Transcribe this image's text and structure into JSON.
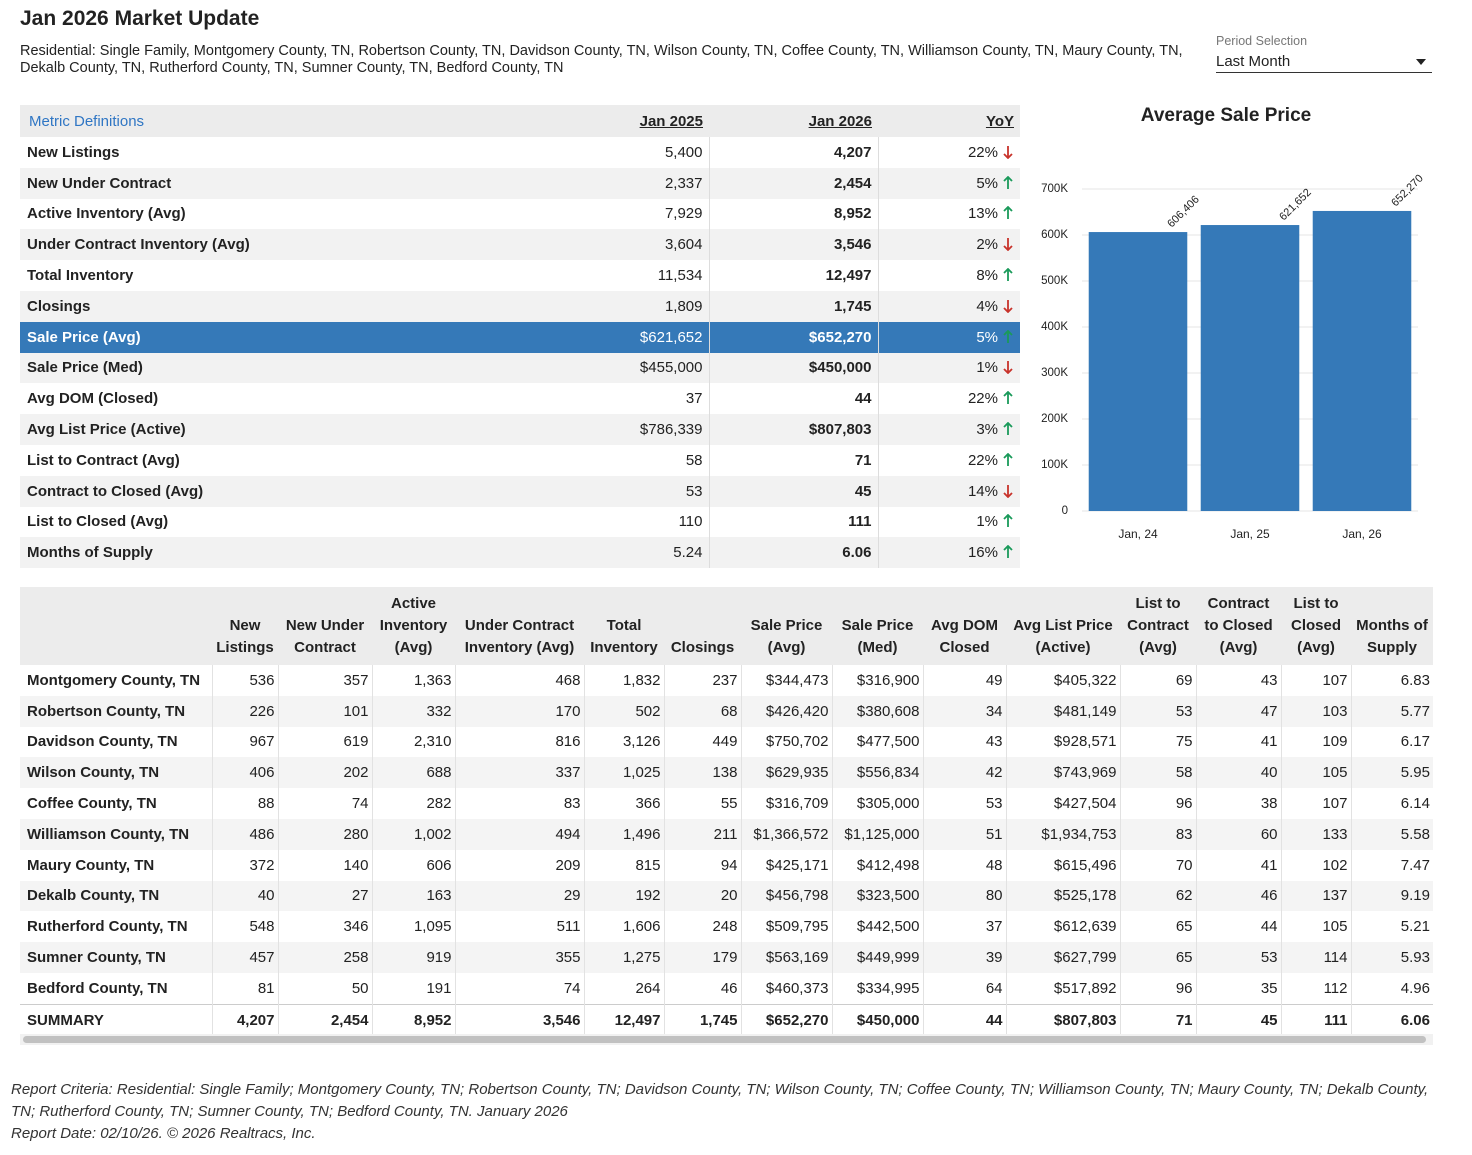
{
  "header": {
    "title": "Jan 2026 Market Update",
    "subtitle": "Residential: Single Family, Montgomery County, TN, Robertson County, TN, Davidson County, TN, Wilson County, TN, Coffee County, TN, Williamson County, TN, Maury County, TN, Dekalb County, TN, Rutherford County, TN, Sumner County, TN, Bedford County, TN",
    "period_label": "Period Selection",
    "period_value": "Last Month"
  },
  "metrics": {
    "columns": [
      "Metric Definitions",
      "Jan 2025",
      "Jan 2026",
      "YoY"
    ],
    "highlighted_row": 6,
    "rows": [
      [
        "New Listings",
        "5,400",
        "4,207",
        "22%",
        "down"
      ],
      [
        "New Under Contract",
        "2,337",
        "2,454",
        "5%",
        "up"
      ],
      [
        "Active Inventory (Avg)",
        "7,929",
        "8,952",
        "13%",
        "up"
      ],
      [
        "Under Contract Inventory (Avg)",
        "3,604",
        "3,546",
        "2%",
        "down"
      ],
      [
        "Total Inventory",
        "11,534",
        "12,497",
        "8%",
        "up"
      ],
      [
        "Closings",
        "1,809",
        "1,745",
        "4%",
        "down"
      ],
      [
        "Sale Price (Avg)",
        "$621,652",
        "$652,270",
        "5%",
        "up"
      ],
      [
        "Sale Price (Med)",
        "$455,000",
        "$450,000",
        "1%",
        "down"
      ],
      [
        "Avg DOM (Closed)",
        "37",
        "44",
        "22%",
        "up"
      ],
      [
        "Avg List Price (Active)",
        "$786,339",
        "$807,803",
        "3%",
        "up"
      ],
      [
        "List to Contract (Avg)",
        "58",
        "71",
        "22%",
        "up"
      ],
      [
        "Contract to Closed (Avg)",
        "53",
        "45",
        "14%",
        "down"
      ],
      [
        "List to Closed (Avg)",
        "110",
        "111",
        "1%",
        "up"
      ],
      [
        "Months of Supply",
        "5.24",
        "6.06",
        "16%",
        "up"
      ]
    ]
  },
  "chart_data": {
    "type": "bar",
    "title": "Average Sale Price",
    "categories": [
      "Jan, 24",
      "Jan, 25",
      "Jan, 26"
    ],
    "values": [
      606406,
      621652,
      652270
    ],
    "value_labels": [
      "606,406",
      "621,652",
      "652,270"
    ],
    "color": "#3579b8",
    "ylim": [
      0,
      700000
    ],
    "grid": true,
    "yticks": [
      0,
      {
        "value": 100000,
        "label": "100K"
      },
      {
        "value": 200000,
        "label": "200K"
      },
      {
        "value": 300000,
        "label": "300K"
      },
      {
        "value": 400000,
        "label": "400K"
      },
      {
        "value": 500000,
        "label": "500K"
      },
      {
        "value": 600000,
        "label": "600K"
      },
      {
        "value": 700000,
        "label": "700K"
      }
    ]
  },
  "counties": {
    "columns": [
      "New Listings",
      "New Under Contract",
      "Active Inventory (Avg)",
      "Under Contract Inventory (Avg)",
      "Total Inventory",
      "Closings",
      "Sale Price (Avg)",
      "Sale Price (Med)",
      "Avg DOM Closed",
      "Avg List Price (Active)",
      "List to Contract (Avg)",
      "Contract to Closed (Avg)",
      "List to Closed (Avg)",
      "Months of Supply"
    ],
    "rows": [
      [
        "Montgomery County, TN",
        "536",
        "357",
        "1,363",
        "468",
        "1,832",
        "237",
        "$344,473",
        "$316,900",
        "49",
        "$405,322",
        "69",
        "43",
        "107",
        "6.83"
      ],
      [
        "Robertson County, TN",
        "226",
        "101",
        "332",
        "170",
        "502",
        "68",
        "$426,420",
        "$380,608",
        "34",
        "$481,149",
        "53",
        "47",
        "103",
        "5.77"
      ],
      [
        "Davidson County, TN",
        "967",
        "619",
        "2,310",
        "816",
        "3,126",
        "449",
        "$750,702",
        "$477,500",
        "43",
        "$928,571",
        "75",
        "41",
        "109",
        "6.17"
      ],
      [
        "Wilson County, TN",
        "406",
        "202",
        "688",
        "337",
        "1,025",
        "138",
        "$629,935",
        "$556,834",
        "42",
        "$743,969",
        "58",
        "40",
        "105",
        "5.95"
      ],
      [
        "Coffee County, TN",
        "88",
        "74",
        "282",
        "83",
        "366",
        "55",
        "$316,709",
        "$305,000",
        "53",
        "$427,504",
        "96",
        "38",
        "107",
        "6.14"
      ],
      [
        "Williamson County, TN",
        "486",
        "280",
        "1,002",
        "494",
        "1,496",
        "211",
        "$1,366,572",
        "$1,125,000",
        "51",
        "$1,934,753",
        "83",
        "60",
        "133",
        "5.58"
      ],
      [
        "Maury County, TN",
        "372",
        "140",
        "606",
        "209",
        "815",
        "94",
        "$425,171",
        "$412,498",
        "48",
        "$615,496",
        "70",
        "41",
        "102",
        "7.47"
      ],
      [
        "Dekalb County, TN",
        "40",
        "27",
        "163",
        "29",
        "192",
        "20",
        "$456,798",
        "$323,500",
        "80",
        "$525,178",
        "62",
        "46",
        "137",
        "9.19"
      ],
      [
        "Rutherford County, TN",
        "548",
        "346",
        "1,095",
        "511",
        "1,606",
        "248",
        "$509,795",
        "$442,500",
        "37",
        "$612,639",
        "65",
        "44",
        "105",
        "5.21"
      ],
      [
        "Sumner County, TN",
        "457",
        "258",
        "919",
        "355",
        "1,275",
        "179",
        "$563,169",
        "$449,999",
        "39",
        "$627,799",
        "65",
        "53",
        "114",
        "5.93"
      ],
      [
        "Bedford County, TN",
        "81",
        "50",
        "191",
        "74",
        "264",
        "46",
        "$460,373",
        "$334,995",
        "64",
        "$517,892",
        "96",
        "35",
        "112",
        "4.96"
      ]
    ],
    "summary": [
      "SUMMARY",
      "4,207",
      "2,454",
      "8,952",
      "3,546",
      "12,497",
      "1,745",
      "$652,270",
      "$450,000",
      "44",
      "$807,803",
      "71",
      "45",
      "111",
      "6.06"
    ]
  },
  "footer": {
    "criteria": "Report Criteria: Residential: Single Family; Montgomery County, TN; Robertson County, TN; Davidson County, TN; Wilson County, TN; Coffee County, TN; Williamson County, TN; Maury County, TN; Dekalb County, TN; Rutherford County, TN; Sumner County, TN; Bedford County, TN. January 2026",
    "report_date": "Report Date: 02/10/26. © 2026 Realtracs, Inc."
  }
}
